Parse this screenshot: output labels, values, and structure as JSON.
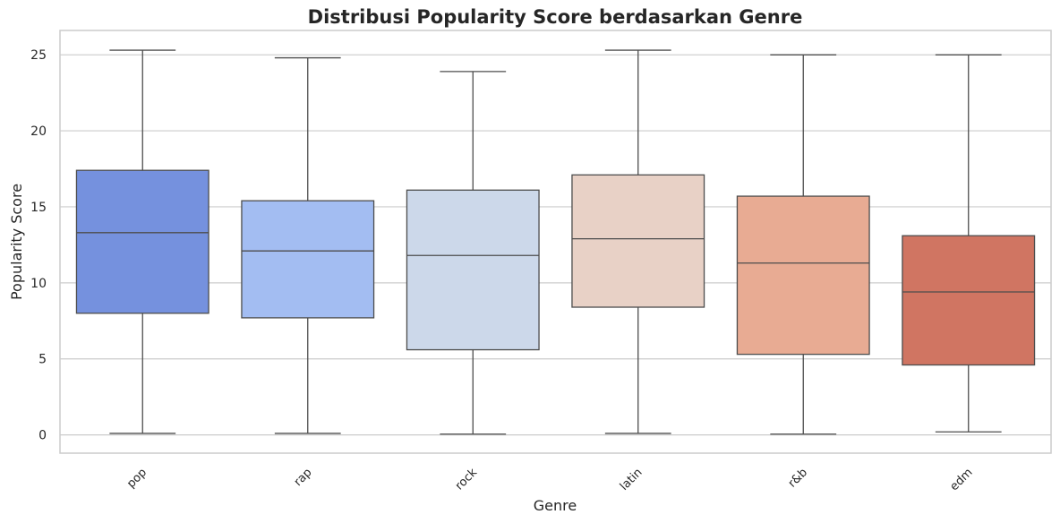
{
  "chart_data": {
    "type": "box",
    "title": "Distribusi Popularity Score berdasarkan Genre",
    "xlabel": "Genre",
    "ylabel": "Popularity Score",
    "ylim": [
      -1.2,
      26.6
    ],
    "yticks": [
      0,
      5,
      10,
      15,
      20,
      25
    ],
    "grid": true,
    "categories": [
      "pop",
      "rap",
      "rock",
      "latin",
      "r&b",
      "edm"
    ],
    "boxes": [
      {
        "category": "pop",
        "min": 0.1,
        "q1": 8.0,
        "median": 13.3,
        "q3": 17.4,
        "max": 25.3,
        "color": "#7591de"
      },
      {
        "category": "rap",
        "min": 0.1,
        "q1": 7.7,
        "median": 12.1,
        "q3": 15.4,
        "max": 24.8,
        "color": "#a3bdf2"
      },
      {
        "category": "rock",
        "min": 0.05,
        "q1": 5.6,
        "median": 11.8,
        "q3": 16.1,
        "max": 23.9,
        "color": "#ccd8ea"
      },
      {
        "category": "latin",
        "min": 0.1,
        "q1": 8.4,
        "median": 12.9,
        "q3": 17.1,
        "max": 25.3,
        "color": "#e8d1c6"
      },
      {
        "category": "r&b",
        "min": 0.05,
        "q1": 5.3,
        "median": 11.3,
        "q3": 15.7,
        "max": 25.0,
        "color": "#e8ab93"
      },
      {
        "category": "edm",
        "min": 0.2,
        "q1": 4.6,
        "median": 9.4,
        "q3": 13.1,
        "max": 25.0,
        "color": "#d07562"
      }
    ]
  }
}
